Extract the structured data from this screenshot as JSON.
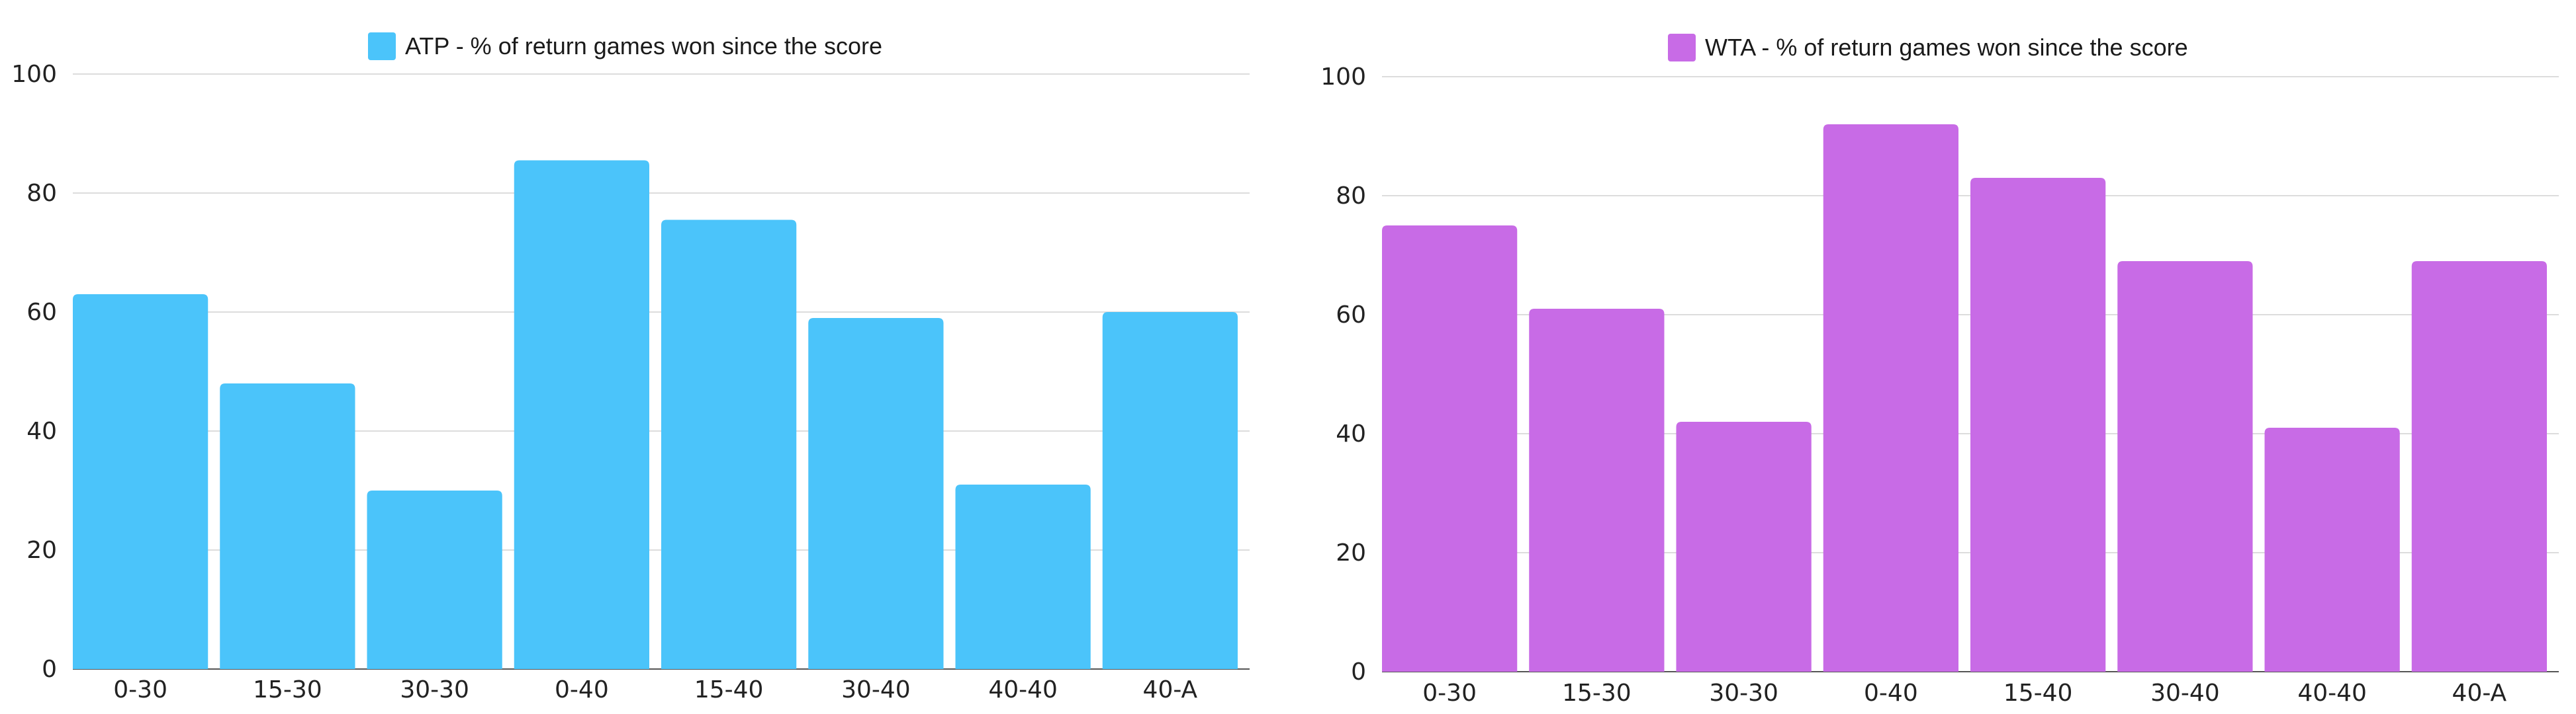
{
  "chart_data": [
    {
      "type": "bar",
      "legend": "ATP - % of return games won since the score",
      "color": "#4BC4FA",
      "categories": [
        "0-30",
        "15-30",
        "30-30",
        "0-40",
        "15-40",
        "30-40",
        "40-40",
        "40-A"
      ],
      "series": [
        {
          "name": "ATP - % of return games won since the score",
          "values": [
            63,
            48,
            30,
            85.5,
            75.5,
            59,
            31,
            60
          ]
        }
      ],
      "xlabel": "",
      "ylabel": "",
      "ylim": [
        0,
        100
      ],
      "yticks": [
        "0",
        "20",
        "40",
        "60",
        "80",
        "100"
      ],
      "grid": true,
      "legend_position": "top-center"
    },
    {
      "type": "bar",
      "legend": "WTA - % of return games won since the score",
      "color": "#C86BE6",
      "categories": [
        "0-30",
        "15-30",
        "30-30",
        "0-40",
        "15-40",
        "30-40",
        "40-40",
        "40-A"
      ],
      "series": [
        {
          "name": "WTA - % of return games won since the score",
          "values": [
            75,
            61,
            42,
            92,
            83,
            69,
            41,
            69
          ]
        }
      ],
      "xlabel": "",
      "ylabel": "",
      "ylim": [
        0,
        100
      ],
      "yticks": [
        "0",
        "20",
        "40",
        "60",
        "80",
        "100"
      ],
      "grid": true,
      "legend_position": "top-center"
    }
  ]
}
